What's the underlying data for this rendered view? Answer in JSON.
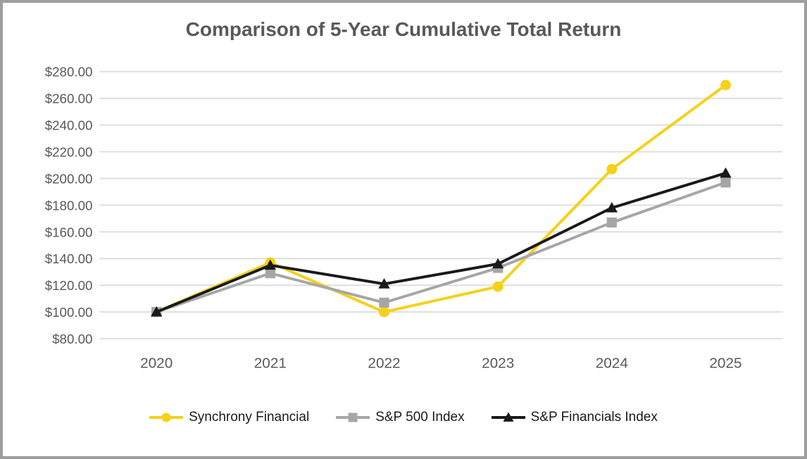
{
  "window": {
    "background": "#FFFFFF",
    "border_color": "#9E9E9E"
  },
  "chart_data": {
    "type": "line",
    "title": "Comparison of 5-Year Cumulative Total Return",
    "title_color": "#595959",
    "categories": [
      "2020",
      "2021",
      "2022",
      "2023",
      "2024",
      "2025"
    ],
    "series": [
      {
        "name": "Synchrony Financial",
        "color": "#F5D118",
        "marker": "circle",
        "values": [
          100.0,
          137.0,
          100.0,
          119.0,
          207.0,
          270.0
        ]
      },
      {
        "name": "S&P 500 Index",
        "color": "#A6A6A6",
        "marker": "square",
        "values": [
          100.0,
          129.0,
          107.0,
          133.0,
          167.0,
          197.0
        ]
      },
      {
        "name": "S&P Financials Index",
        "color": "#1A1A1A",
        "marker": "triangle",
        "values": [
          100.0,
          135.0,
          121.0,
          136.0,
          178.0,
          204.0
        ]
      }
    ],
    "ylim": [
      80,
      280
    ],
    "y_tick_step": 20,
    "y_tick_labels": [
      "$280.00",
      "$260.00",
      "$240.00",
      "$220.00",
      "$200.00",
      "$180.00",
      "$160.00",
      "$140.00",
      "$120.00",
      "$100.00",
      "$80.00"
    ],
    "xlabel": "",
    "ylabel": "",
    "grid": true,
    "gridline_color": "#DEDEDE",
    "axis_label_color": "#595959",
    "legend_position": "bottom"
  }
}
